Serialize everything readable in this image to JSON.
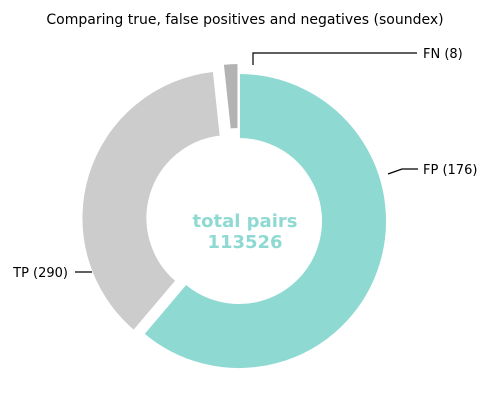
{
  "chart_data": {
    "type": "pie",
    "title": "Comparing true, false positives and negatives (soundex)",
    "series": [
      {
        "name": "TP",
        "label": "TP (290)",
        "value": 290,
        "color": "#8fd9d3"
      },
      {
        "name": "FP",
        "label": "FP (176)",
        "value": 176,
        "color": "#cccccc"
      },
      {
        "name": "FN",
        "label": "FN (8)",
        "value": 8,
        "color": "#b3b3b3"
      }
    ],
    "center_label": {
      "line1": "total pairs",
      "line2": "113526",
      "color": "#8fd9d3"
    },
    "style": "donut",
    "slice_gap_exploded": true
  }
}
